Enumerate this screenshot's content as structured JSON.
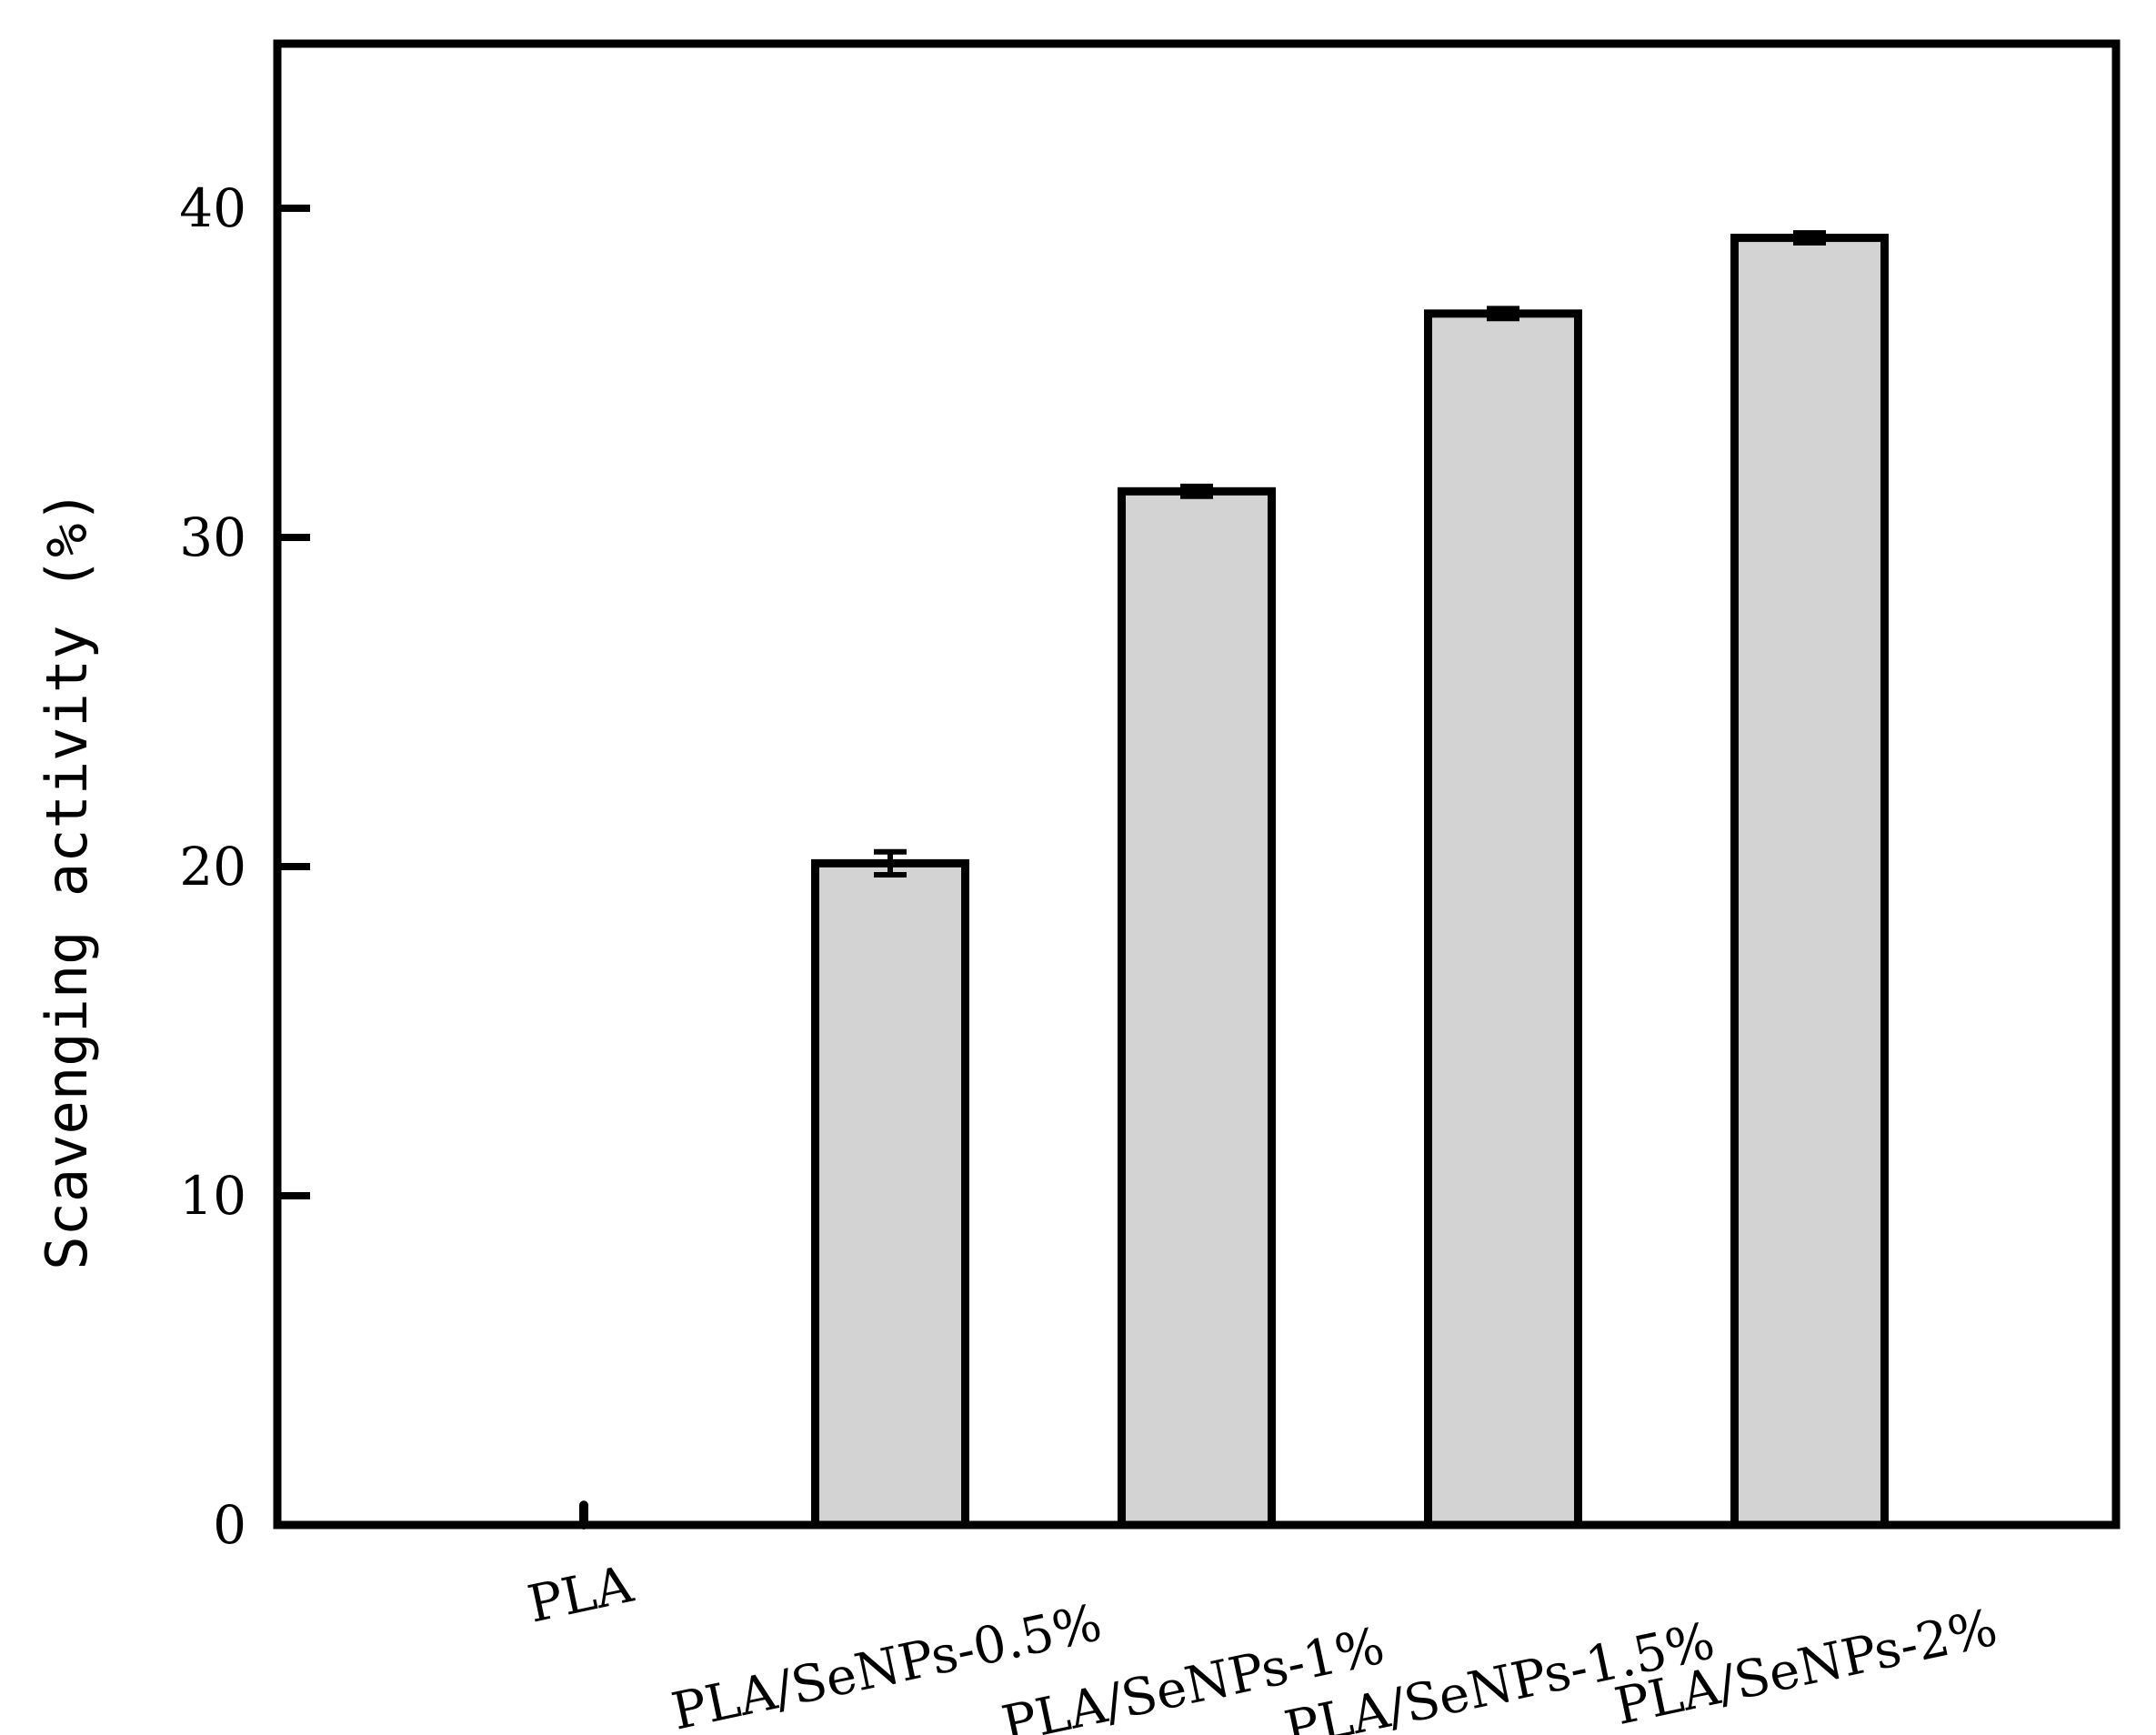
{
  "chart_data": {
    "type": "bar",
    "title": "",
    "xlabel": "",
    "ylabel": "Scavenging activity (%)",
    "categories": [
      "PLA",
      "PLA/SeNPs-0.5%",
      "PLA/SeNPs-1%",
      "PLA/SeNPs-1.5%",
      "PLA/SeNPs-2%"
    ],
    "values": [
      0.6,
      20.1,
      31.4,
      36.8,
      39.1
    ],
    "errors": [
      0.3,
      0.35,
      0.15,
      0.15,
      0.15
    ],
    "ylim": [
      0,
      45
    ],
    "yticks": [
      0,
      10,
      20,
      30,
      40
    ],
    "bar_color": "#d3d3d3",
    "edge_color": "#000000",
    "grid": false,
    "legend": "none"
  }
}
